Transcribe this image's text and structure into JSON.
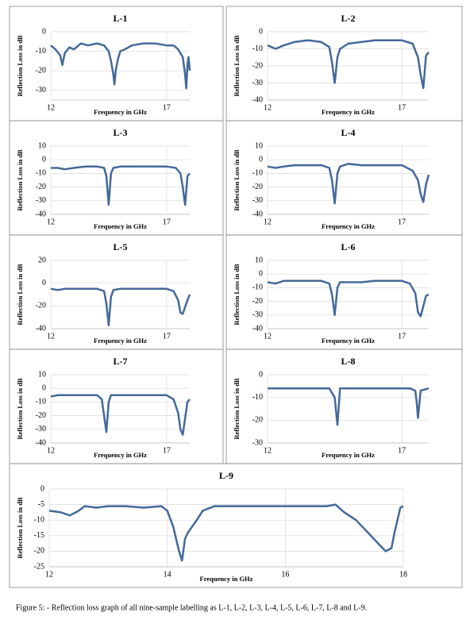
{
  "chart_data": [
    {
      "type": "line",
      "title": "L-1",
      "xlabel": "Frequency in GHz",
      "ylabel": "Reflection Loss  in dB",
      "color": "#44699a",
      "grid": true,
      "xlim": [
        12,
        18
      ],
      "xticks": [
        12,
        17
      ],
      "ylim": [
        -35,
        0
      ],
      "yticks": [
        0,
        -10,
        -20,
        -30
      ],
      "x": [
        12,
        12.2,
        12.4,
        12.5,
        12.6,
        12.8,
        13,
        13.3,
        13.6,
        14,
        14.3,
        14.5,
        14.6,
        14.7,
        14.75,
        14.8,
        14.9,
        15,
        15.2,
        15.5,
        16,
        16.5,
        17,
        17.3,
        17.5,
        17.7,
        17.8,
        17.85,
        17.9,
        17.95,
        18
      ],
      "values": [
        -7,
        -9,
        -12,
        -17,
        -11,
        -8,
        -9,
        -6,
        -7,
        -6,
        -7,
        -10,
        -15,
        -22,
        -27,
        -20,
        -14,
        -10,
        -9,
        -7,
        -6,
        -6,
        -7,
        -7,
        -9,
        -13,
        -22,
        -29,
        -17,
        -13,
        -20
      ]
    },
    {
      "type": "line",
      "title": "L-2",
      "xlabel": "Frequency in GHz",
      "ylabel": "Reflection Loss  in dB",
      "color": "#44699a",
      "grid": true,
      "xlim": [
        12,
        18
      ],
      "xticks": [
        12,
        17
      ],
      "ylim": [
        -40,
        0
      ],
      "yticks": [
        0,
        -10,
        -20,
        -30,
        -40
      ],
      "x": [
        12,
        12.3,
        12.6,
        13,
        13.5,
        14,
        14.3,
        14.4,
        14.5,
        14.6,
        14.7,
        15,
        15.5,
        16,
        16.5,
        17,
        17.4,
        17.6,
        17.7,
        17.8,
        17.9,
        18
      ],
      "values": [
        -8,
        -10,
        -8,
        -6,
        -5,
        -6,
        -9,
        -18,
        -30,
        -15,
        -10,
        -7,
        -6,
        -5,
        -5,
        -5,
        -7,
        -15,
        -25,
        -33,
        -14,
        -12
      ]
    },
    {
      "type": "line",
      "title": "L-3",
      "xlabel": "Frequency in GHz",
      "ylabel": "Reflection Loss  in dB",
      "color": "#44699a",
      "grid": true,
      "xlim": [
        12,
        18
      ],
      "xticks": [
        12,
        17
      ],
      "ylim": [
        -40,
        10
      ],
      "yticks": [
        10,
        0,
        -10,
        -20,
        -30,
        -40
      ],
      "x": [
        12,
        12.3,
        12.6,
        13,
        13.5,
        14,
        14.3,
        14.4,
        14.5,
        14.6,
        14.7,
        15,
        15.5,
        16,
        16.5,
        17,
        17.4,
        17.6,
        17.7,
        17.8,
        17.9,
        18
      ],
      "values": [
        -6,
        -6,
        -7,
        -6,
        -5,
        -5,
        -6,
        -12,
        -33,
        -10,
        -6,
        -5,
        -5,
        -5,
        -5,
        -5,
        -6,
        -10,
        -20,
        -33,
        -12,
        -10
      ]
    },
    {
      "type": "line",
      "title": "L-4",
      "xlabel": "Frequency in GHz",
      "ylabel": "Reflection Loss  in dB",
      "color": "#44699a",
      "grid": true,
      "xlim": [
        12,
        18
      ],
      "xticks": [
        12,
        17
      ],
      "ylim": [
        -40,
        10
      ],
      "yticks": [
        10,
        0,
        -10,
        -20,
        -30,
        -40
      ],
      "x": [
        12,
        12.3,
        12.6,
        13,
        13.5,
        14,
        14.3,
        14.4,
        14.5,
        14.6,
        14.7,
        15,
        15.5,
        16,
        16.5,
        17,
        17.4,
        17.6,
        17.7,
        17.8,
        17.9,
        18
      ],
      "values": [
        -5,
        -6,
        -5,
        -4,
        -4,
        -4,
        -6,
        -15,
        -32,
        -10,
        -5,
        -3,
        -4,
        -4,
        -4,
        -4,
        -8,
        -15,
        -25,
        -31,
        -18,
        -11
      ]
    },
    {
      "type": "line",
      "title": "L-5",
      "xlabel": "Frequency in GHz",
      "ylabel": "Reflection Loss  in dB",
      "color": "#44699a",
      "grid": true,
      "xlim": [
        12,
        18
      ],
      "xticks": [
        12,
        17
      ],
      "ylim": [
        -40,
        20
      ],
      "yticks": [
        20,
        0,
        -20,
        -40
      ],
      "x": [
        12,
        12.3,
        12.6,
        13,
        13.5,
        14,
        14.3,
        14.4,
        14.5,
        14.6,
        14.7,
        15,
        15.5,
        16,
        16.5,
        17,
        17.3,
        17.5,
        17.6,
        17.7,
        17.9,
        18
      ],
      "values": [
        -5,
        -6,
        -5,
        -5,
        -5,
        -5,
        -7,
        -18,
        -37,
        -12,
        -6,
        -5,
        -5,
        -5,
        -5,
        -5,
        -7,
        -15,
        -26,
        -27,
        -15,
        -10
      ]
    },
    {
      "type": "line",
      "title": "L-6",
      "xlabel": "Frequency in GHz",
      "ylabel": "Reflection Loss  in dB",
      "color": "#44699a",
      "grid": true,
      "xlim": [
        12,
        18
      ],
      "xticks": [
        12,
        17
      ],
      "ylim": [
        -40,
        10
      ],
      "yticks": [
        10,
        0,
        -10,
        -20,
        -30,
        -40
      ],
      "x": [
        12,
        12.3,
        12.6,
        13,
        13.5,
        14,
        14.3,
        14.4,
        14.5,
        14.6,
        14.7,
        15,
        15.5,
        16,
        16.5,
        17,
        17.3,
        17.5,
        17.6,
        17.7,
        17.9,
        18
      ],
      "values": [
        -6,
        -7,
        -5,
        -5,
        -5,
        -5,
        -7,
        -15,
        -30,
        -10,
        -6,
        -6,
        -6,
        -5,
        -5,
        -5,
        -7,
        -14,
        -28,
        -31,
        -16,
        -15
      ]
    },
    {
      "type": "line",
      "title": "L-7",
      "xlabel": "Frequency in GHz",
      "ylabel": "Reflection Loss  in dB",
      "color": "#44699a",
      "grid": true,
      "xlim": [
        12,
        18
      ],
      "xticks": [
        12,
        17
      ],
      "ylim": [
        -40,
        10
      ],
      "yticks": [
        10,
        0,
        -10,
        -20,
        -30,
        -40
      ],
      "x": [
        12,
        12.3,
        12.6,
        13,
        13.5,
        14,
        14.2,
        14.3,
        14.4,
        14.5,
        14.6,
        15,
        15.5,
        16,
        16.5,
        17,
        17.3,
        17.5,
        17.6,
        17.7,
        17.9,
        18
      ],
      "values": [
        -6,
        -5,
        -5,
        -5,
        -5,
        -5,
        -8,
        -20,
        -32,
        -10,
        -5,
        -5,
        -5,
        -5,
        -5,
        -5,
        -8,
        -18,
        -30,
        -34,
        -10,
        -8
      ]
    },
    {
      "type": "line",
      "title": "L-8",
      "xlabel": "Frequency in GHz",
      "ylabel": "Reflection Loss  in dB",
      "color": "#44699a",
      "grid": true,
      "xlim": [
        12,
        18
      ],
      "xticks": [
        12,
        17
      ],
      "ylim": [
        -30,
        0
      ],
      "yticks": [
        0,
        -10,
        -20,
        -30
      ],
      "x": [
        12,
        12.3,
        12.6,
        13,
        13.5,
        14,
        14.3,
        14.5,
        14.6,
        14.7,
        14.8,
        15,
        15.5,
        16,
        16.5,
        17,
        17.3,
        17.5,
        17.55,
        17.6,
        17.7,
        18
      ],
      "values": [
        -6,
        -6,
        -6,
        -6,
        -6,
        -6,
        -6,
        -10,
        -22,
        -6,
        -6,
        -6,
        -6,
        -6,
        -6,
        -6,
        -6,
        -7,
        -12,
        -19,
        -7,
        -6
      ]
    },
    {
      "type": "line",
      "title": "L-9",
      "xlabel": "Frequency in GHz",
      "ylabel": "Reflection Loss in dB",
      "color": "#44699a",
      "grid": true,
      "xlim": [
        12,
        18
      ],
      "xticks": [
        12,
        14,
        16,
        18
      ],
      "ylim": [
        -25,
        0
      ],
      "yticks": [
        0,
        -5,
        -10,
        -15,
        -20,
        -25
      ],
      "x": [
        12,
        12.2,
        12.35,
        12.5,
        12.6,
        12.8,
        13,
        13.3,
        13.6,
        13.9,
        14.0,
        14.1,
        14.15,
        14.2,
        14.25,
        14.3,
        14.35,
        14.5,
        14.6,
        14.8,
        15.2,
        15.6,
        16,
        16.4,
        16.7,
        16.85,
        17.0,
        17.2,
        17.4,
        17.6,
        17.7,
        17.8,
        17.85,
        17.9,
        17.95,
        18
      ],
      "values": [
        -7,
        -7.5,
        -8.5,
        -7,
        -5.5,
        -6,
        -5.5,
        -5.5,
        -6,
        -5.5,
        -7,
        -12,
        -16,
        -20,
        -23,
        -16,
        -14,
        -10,
        -7,
        -5.5,
        -5.5,
        -5.5,
        -5.5,
        -5.5,
        -5.5,
        -5,
        -7.5,
        -10,
        -14,
        -18,
        -20,
        -19,
        -14,
        -10,
        -6,
        -5.5
      ]
    }
  ],
  "caption": "Figure 5: - Reflection loss graph of all nine-sample labelling as L-1, L-2, L-3, L-4, L-5, L-6, L-7, L-8 and L-9."
}
